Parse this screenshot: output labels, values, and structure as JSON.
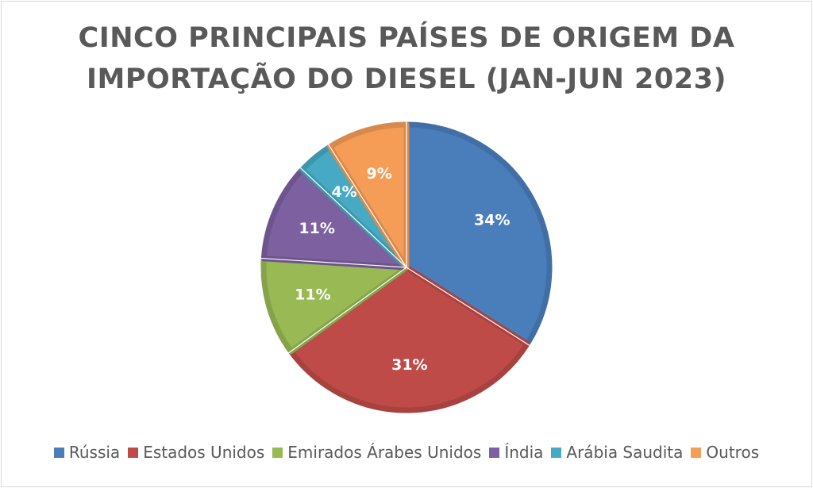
{
  "chart_data": {
    "type": "pie",
    "title_lines": [
      "CINCO PRINCIPAIS PAÍSES DE ORIGEM DA",
      "IMPORTAÇÃO DO DIESEL (JAN-JUN 2023)"
    ],
    "slices": [
      {
        "label": "Rússia",
        "value": 34,
        "value_label": "34%",
        "color": "#4a7ebb"
      },
      {
        "label": "Estados Unidos",
        "value": 31,
        "value_label": "31%",
        "color": "#be4b48"
      },
      {
        "label": "Emirados Árabes Unidos",
        "value": 11,
        "value_label": "11%",
        "color": "#98b954"
      },
      {
        "label": "Índia",
        "value": 11,
        "value_label": "11%",
        "color": "#7d60a0"
      },
      {
        "label": "Arábia Saudita",
        "value": 4,
        "value_label": "4%",
        "color": "#46aac5"
      },
      {
        "label": "Outros",
        "value": 9,
        "value_label": "9%",
        "color": "#f59d56"
      }
    ],
    "legend_position": "bottom",
    "start_angle": "12 o'clock",
    "direction": "clockwise"
  }
}
